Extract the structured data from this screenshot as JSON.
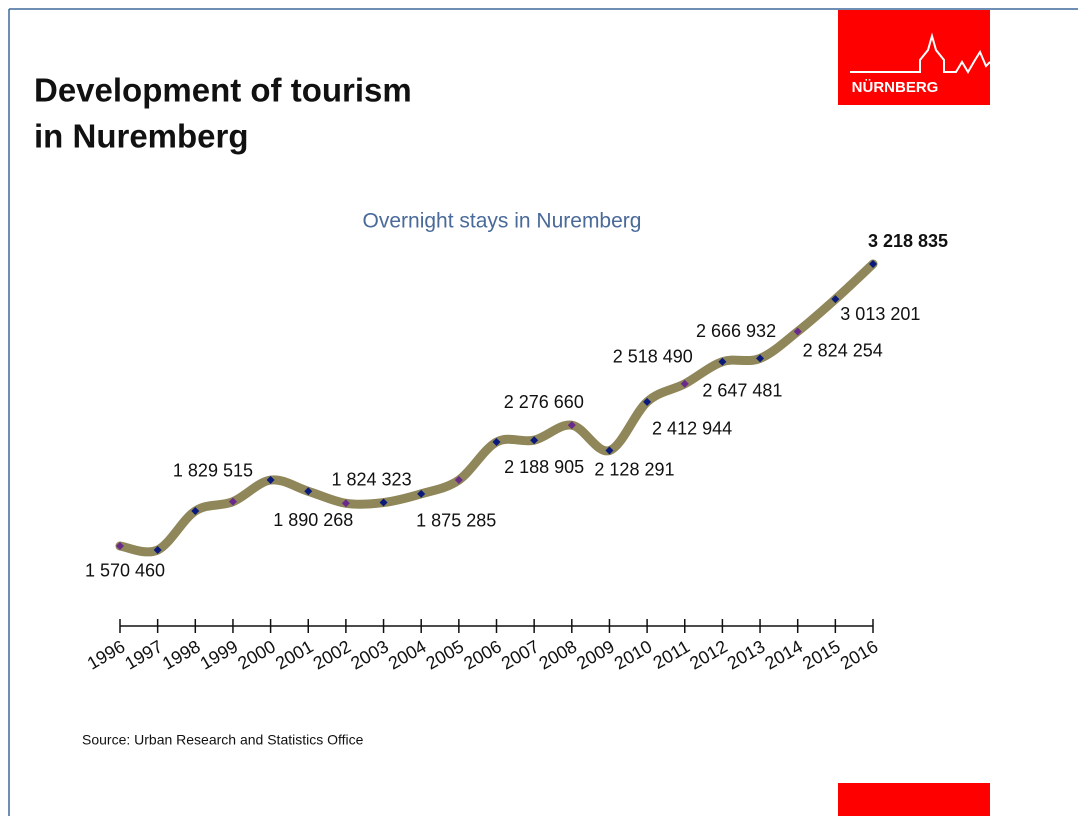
{
  "slide": {
    "title_lines": [
      "Development of tourism",
      "in Nuremberg"
    ],
    "logo": "NÜRNBERG",
    "source": "Source: Urban Research and Statistics Office"
  },
  "chart_data": {
    "type": "line",
    "title": "Overnight stays in Nuremberg",
    "categories": [
      "1996",
      "1997",
      "1998",
      "1999",
      "2000",
      "2001",
      "2002",
      "2003",
      "2004",
      "2005",
      "2006",
      "2007",
      "2008",
      "2009",
      "2010",
      "2011",
      "2012",
      "2013",
      "2014",
      "2015",
      "2016"
    ],
    "series": [
      {
        "name": "Overnight stays",
        "color": "#8f875a",
        "values": [
          1570460,
          1547000,
          1775000,
          1829515,
          1956000,
          1890268,
          1820000,
          1824323,
          1875285,
          1956000,
          2178000,
          2188905,
          2276660,
          2128291,
          2412944,
          2518490,
          2647481,
          2666932,
          2824254,
          3013201,
          3218835
        ],
        "value_labels": [
          "1 570 460",
          null,
          null,
          "1 829 515",
          null,
          "1 890 268",
          null,
          "1 824 323",
          "1 875 285",
          null,
          null,
          "2 188 905",
          "2 276 660",
          "2 128 291",
          "2 412 944",
          "2 518 490",
          "2 647 481",
          "2 666 932",
          "2 824 254",
          "3 013 201",
          "3 218 835"
        ]
      }
    ]
  }
}
